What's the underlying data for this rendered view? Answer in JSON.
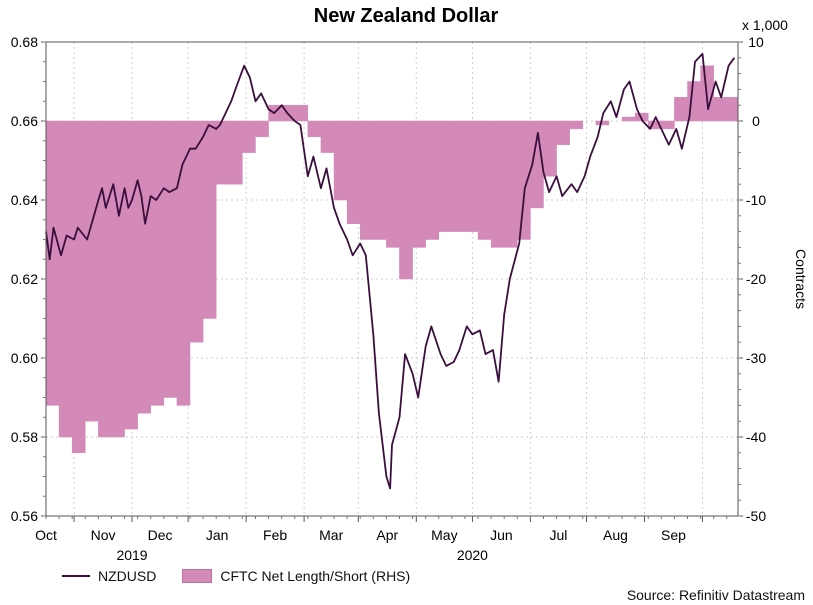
{
  "chart_data": {
    "type": "line",
    "title": "New Zealand Dollar",
    "ylabel_right": "Contracts",
    "right_multiplier": "x 1,000",
    "ylim_left": [
      0.56,
      0.68
    ],
    "yticks_left": [
      0.56,
      0.58,
      0.6,
      0.62,
      0.64,
      0.66,
      0.68
    ],
    "ylim_right": [
      -50,
      10
    ],
    "yticks_right": [
      -50,
      -40,
      -30,
      -20,
      -10,
      0,
      10
    ],
    "month_labels": [
      "Oct",
      "Nov",
      "Dec",
      "Jan",
      "Feb",
      "Mar",
      "Apr",
      "May",
      "Jun",
      "Jul",
      "Aug",
      "Sep"
    ],
    "year_labels": [
      "2019",
      "2020"
    ],
    "series": [
      {
        "name": "NZDUSD",
        "axis": "left",
        "x": [
          "2019-09-16",
          "2019-09-18",
          "2019-09-20",
          "2019-09-24",
          "2019-09-27",
          "2019-10-01",
          "2019-10-03",
          "2019-10-08",
          "2019-10-11",
          "2019-10-14",
          "2019-10-16",
          "2019-10-18",
          "2019-10-22",
          "2019-10-25",
          "2019-10-28",
          "2019-10-30",
          "2019-11-01",
          "2019-11-04",
          "2019-11-06",
          "2019-11-08",
          "2019-11-11",
          "2019-11-14",
          "2019-11-18",
          "2019-11-21",
          "2019-11-25",
          "2019-11-28",
          "2019-12-02",
          "2019-12-05",
          "2019-12-09",
          "2019-12-12",
          "2019-12-16",
          "2019-12-18",
          "2019-12-20",
          "2019-12-24",
          "2019-12-27",
          "2019-12-31",
          "2020-01-03",
          "2020-01-06",
          "2020-01-09",
          "2020-01-13",
          "2020-01-16",
          "2020-01-20",
          "2020-01-23",
          "2020-01-27",
          "2020-01-30",
          "2020-02-03",
          "2020-02-06",
          "2020-02-10",
          "2020-02-13",
          "2020-02-17",
          "2020-02-20",
          "2020-02-24",
          "2020-02-27",
          "2020-03-02",
          "2020-03-05",
          "2020-03-09",
          "2020-03-12",
          "2020-03-16",
          "2020-03-18",
          "2020-03-19",
          "2020-03-23",
          "2020-03-26",
          "2020-03-30",
          "2020-04-02",
          "2020-04-06",
          "2020-04-09",
          "2020-04-14",
          "2020-04-17",
          "2020-04-21",
          "2020-04-24",
          "2020-04-28",
          "2020-05-01",
          "2020-05-05",
          "2020-05-08",
          "2020-05-12",
          "2020-05-15",
          "2020-05-18",
          "2020-05-21",
          "2020-05-26",
          "2020-05-29",
          "2020-06-02",
          "2020-06-05",
          "2020-06-08",
          "2020-06-11",
          "2020-06-15",
          "2020-06-18",
          "2020-06-23",
          "2020-06-26",
          "2020-06-30",
          "2020-07-03",
          "2020-07-07",
          "2020-07-10",
          "2020-07-14",
          "2020-07-17",
          "2020-07-21",
          "2020-07-24",
          "2020-07-28",
          "2020-07-31",
          "2020-08-04",
          "2020-08-07",
          "2020-08-11",
          "2020-08-14",
          "2020-08-18",
          "2020-08-21",
          "2020-08-25",
          "2020-08-28",
          "2020-09-01",
          "2020-09-04",
          "2020-09-08",
          "2020-09-11",
          "2020-09-15",
          "2020-09-18"
        ],
        "values": [
          0.632,
          0.625,
          0.633,
          0.626,
          0.631,
          0.63,
          0.633,
          0.63,
          0.635,
          0.64,
          0.643,
          0.638,
          0.644,
          0.636,
          0.643,
          0.638,
          0.64,
          0.645,
          0.641,
          0.634,
          0.641,
          0.64,
          0.643,
          0.642,
          0.643,
          0.649,
          0.653,
          0.653,
          0.656,
          0.659,
          0.658,
          0.659,
          0.661,
          0.665,
          0.669,
          0.674,
          0.671,
          0.665,
          0.667,
          0.663,
          0.662,
          0.664,
          0.662,
          0.66,
          0.659,
          0.646,
          0.651,
          0.643,
          0.648,
          0.638,
          0.634,
          0.63,
          0.626,
          0.629,
          0.626,
          0.606,
          0.586,
          0.57,
          0.567,
          0.578,
          0.585,
          0.601,
          0.596,
          0.59,
          0.603,
          0.608,
          0.601,
          0.598,
          0.599,
          0.602,
          0.608,
          0.606,
          0.607,
          0.601,
          0.602,
          0.594,
          0.611,
          0.62,
          0.629,
          0.643,
          0.649,
          0.657,
          0.647,
          0.642,
          0.646,
          0.641,
          0.644,
          0.642,
          0.646,
          0.651,
          0.656,
          0.662,
          0.665,
          0.661,
          0.668,
          0.67,
          0.663,
          0.66,
          0.658,
          0.661,
          0.657,
          0.654,
          0.658,
          0.653,
          0.661,
          0.675,
          0.677,
          0.663,
          0.67,
          0.666,
          0.674,
          0.676
        ]
      },
      {
        "name": "CFTC Net Length/Short (RHS)",
        "axis": "right",
        "x": [
          "2019-09-16",
          "2019-09-23",
          "2019-09-30",
          "2019-10-07",
          "2019-10-14",
          "2019-10-21",
          "2019-10-28",
          "2019-11-04",
          "2019-11-11",
          "2019-11-18",
          "2019-11-25",
          "2019-12-02",
          "2019-12-09",
          "2019-12-16",
          "2019-12-23",
          "2019-12-30",
          "2020-01-06",
          "2020-01-13",
          "2020-01-20",
          "2020-01-27",
          "2020-02-03",
          "2020-02-10",
          "2020-02-17",
          "2020-02-24",
          "2020-03-02",
          "2020-03-09",
          "2020-03-16",
          "2020-03-23",
          "2020-03-30",
          "2020-04-06",
          "2020-04-13",
          "2020-04-20",
          "2020-04-27",
          "2020-05-04",
          "2020-05-11",
          "2020-05-18",
          "2020-05-25",
          "2020-06-01",
          "2020-06-08",
          "2020-06-15",
          "2020-06-22",
          "2020-06-29",
          "2020-07-06",
          "2020-07-13",
          "2020-07-20",
          "2020-07-27",
          "2020-08-03",
          "2020-08-10",
          "2020-08-17",
          "2020-08-24",
          "2020-08-31",
          "2020-09-07",
          "2020-09-14"
        ],
        "values": [
          -36,
          -40,
          -42,
          -38,
          -40,
          -40,
          -39,
          -37,
          -36,
          -35,
          -36,
          -28,
          -25,
          -8,
          -8,
          -4,
          -2,
          2,
          2,
          2,
          -2,
          -4,
          -10,
          -13,
          -15,
          -15,
          -16,
          -20,
          -16,
          -15,
          -14,
          -14,
          -14,
          -15,
          -16,
          -16,
          -15,
          -11,
          -7,
          -3,
          -1,
          0,
          -0.5,
          0,
          0.5,
          1,
          -1,
          -1,
          3,
          5,
          7,
          3,
          3
        ]
      }
    ],
    "legend_position": "bottom-left",
    "grid": true
  },
  "source": "Source: Refinitiv Datastream"
}
